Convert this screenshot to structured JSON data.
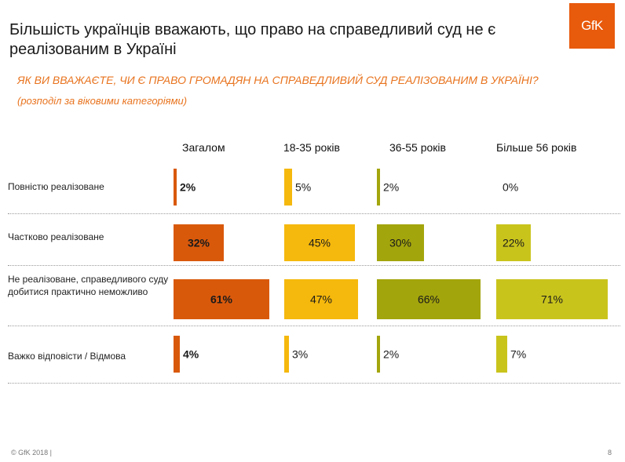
{
  "title": "Більшість українців вважають, що право на справедливий суд не є реалізованим в Україні",
  "logo_text": "GfK",
  "question": "ЯК ВИ ВВАЖАЄТЕ, ЧИ Є ПРАВО ГРОМАДЯН НА СПРАВЕДЛИВИЙ СУД РЕАЛІЗОВАНИМ В УКРАЇНІ?",
  "subquestion": "(розподіл за віковими категоріями)",
  "footer": "© GfK 2018 |",
  "page_number": "8",
  "chart_data": {
    "type": "bar",
    "categories": [
      "Повністю реалізоване",
      "Частково реалізоване",
      "Не реалізоване, справедливого суду добитися практично неможливо",
      "Важко відповісти / Відмова"
    ],
    "series": [
      {
        "name": "Загалом",
        "color": "#d9590b",
        "values": [
          2,
          32,
          61,
          4
        ],
        "labels": [
          "2%",
          "32%",
          "61%",
          "4%"
        ]
      },
      {
        "name": "18-35 років",
        "color": "#f5b80c",
        "values": [
          5,
          45,
          47,
          3
        ],
        "labels": [
          "5%",
          "45%",
          "47%",
          "3%"
        ]
      },
      {
        "name": "36-55 років",
        "color": "#a3a50c",
        "values": [
          2,
          30,
          66,
          2
        ],
        "labels": [
          "2%",
          "30%",
          "66%",
          "2%"
        ]
      },
      {
        "name": "Більше 56 років",
        "color": "#c9c41c",
        "values": [
          0,
          22,
          71,
          7
        ],
        "labels": [
          "0%",
          "22%",
          "71%",
          "7%"
        ]
      }
    ],
    "ylim": [
      0,
      100
    ]
  }
}
